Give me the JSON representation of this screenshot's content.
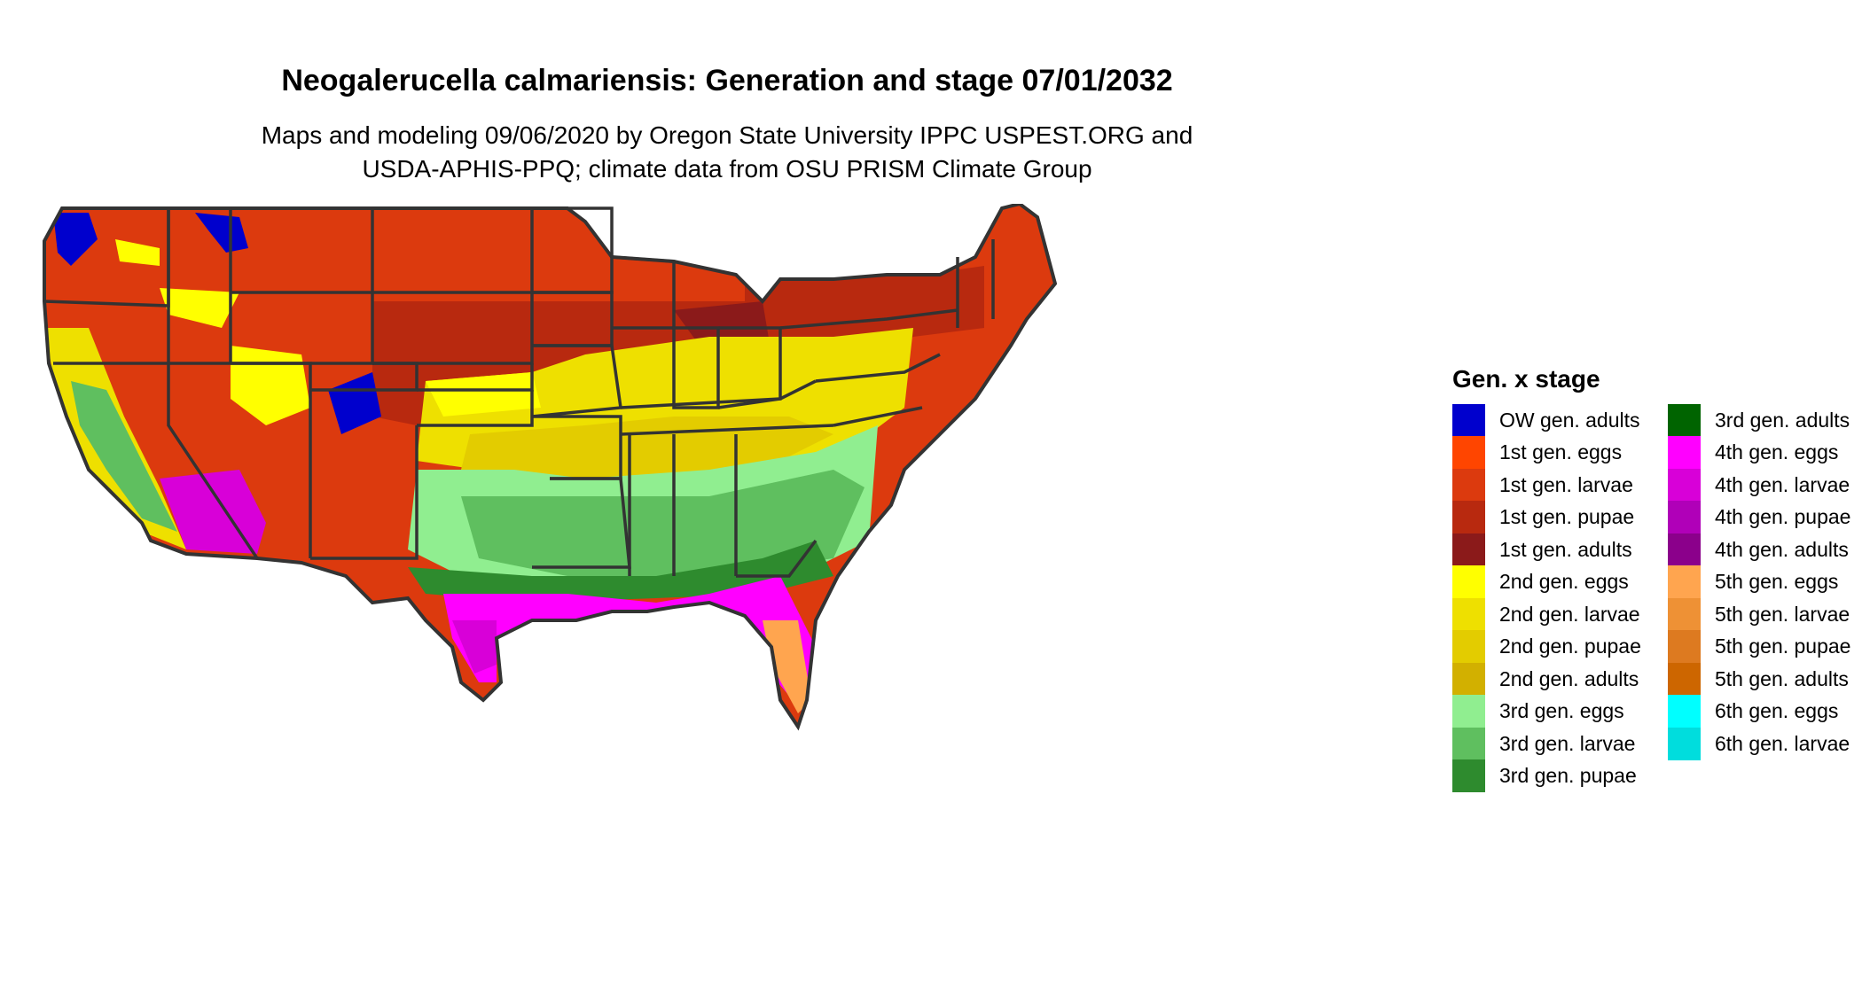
{
  "header": {
    "title": "Neogalerucella calmariensis: Generation and stage 07/01/2032",
    "subtitle_line1": "Maps and modeling 09/06/2020 by Oregon State University IPPC USPEST.ORG and",
    "subtitle_line2": "USDA-APHIS-PPQ; climate data from OSU PRISM Climate Group"
  },
  "legend": {
    "title": "Gen. x stage",
    "column1": [
      {
        "label": "OW gen. adults",
        "color": "#0000CD"
      },
      {
        "label": "1st gen. eggs",
        "color": "#FF4500"
      },
      {
        "label": "1st gen. larvae",
        "color": "#DC3A0E"
      },
      {
        "label": "1st gen. pupae",
        "color": "#B8290F"
      },
      {
        "label": "1st gen. adults",
        "color": "#8B1A1A"
      },
      {
        "label": "2nd gen. eggs",
        "color": "#FFFF00"
      },
      {
        "label": "2nd gen. larvae",
        "color": "#EEE000"
      },
      {
        "label": "2nd gen. pupae",
        "color": "#E3CC00"
      },
      {
        "label": "2nd gen. adults",
        "color": "#D2B000"
      },
      {
        "label": "3rd gen. eggs",
        "color": "#90EE90"
      },
      {
        "label": "3rd gen. larvae",
        "color": "#5FBF5F"
      },
      {
        "label": "3rd gen. pupae",
        "color": "#2E8B2E"
      }
    ],
    "column2": [
      {
        "label": "3rd gen. adults",
        "color": "#006400"
      },
      {
        "label": "4th gen. eggs",
        "color": "#FF00FF"
      },
      {
        "label": "4th gen. larvae",
        "color": "#D800D8"
      },
      {
        "label": "4th gen. pupae",
        "color": "#B000B8"
      },
      {
        "label": "4th gen. adults",
        "color": "#8B008B"
      },
      {
        "label": "5th gen. eggs",
        "color": "#FFA54F"
      },
      {
        "label": "5th gen. larvae",
        "color": "#EE9135"
      },
      {
        "label": "5th gen. pupae",
        "color": "#DD7A20"
      },
      {
        "label": "5th gen. adults",
        "color": "#CD6600"
      },
      {
        "label": "6th gen. eggs",
        "color": "#00FFFF"
      },
      {
        "label": "6th gen. larvae",
        "color": "#00DDDD"
      }
    ]
  }
}
